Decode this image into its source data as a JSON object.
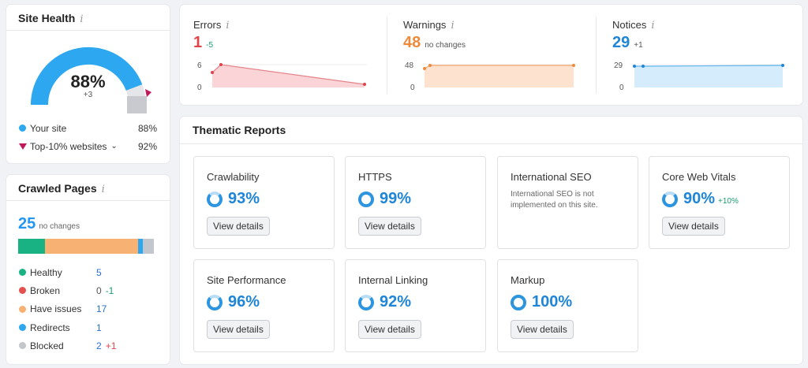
{
  "site_health": {
    "title": "Site Health",
    "info": "i",
    "value": "88%",
    "delta": "+3",
    "legend": [
      {
        "label": "Your site",
        "value": "88%",
        "color": "#2da8f0"
      },
      {
        "label": "Top-10% websites",
        "value": "92%",
        "color": "#c2185b"
      }
    ]
  },
  "crawled_pages": {
    "title": "Crawled Pages",
    "info": "i",
    "count": "25",
    "count_sub": "no changes",
    "rows": [
      {
        "label": "Healthy",
        "value": "5",
        "delta": "",
        "color": "#19b283"
      },
      {
        "label": "Broken",
        "value": "0",
        "delta": "-1",
        "color": "#e4514f"
      },
      {
        "label": "Have issues",
        "value": "17",
        "delta": "",
        "color": "#f6b173"
      },
      {
        "label": "Redirects",
        "value": "1",
        "delta": "",
        "color": "#2da8f0"
      },
      {
        "label": "Blocked",
        "value": "2",
        "delta": "+1",
        "color": "#c3c6cc"
      }
    ]
  },
  "issues": {
    "errors": {
      "title": "Errors",
      "info": "i",
      "value": "1",
      "delta": "-5",
      "color": "#e0444b",
      "ymax": "6",
      "ymin": "0"
    },
    "warnings": {
      "title": "Warnings",
      "info": "i",
      "value": "48",
      "delta": "no changes",
      "color": "#ef8a3b",
      "ymax": "48",
      "ymin": "0"
    },
    "notices": {
      "title": "Notices",
      "info": "i",
      "value": "29",
      "delta": "+1",
      "color": "#1f85d6",
      "ymax": "29",
      "ymin": "0"
    }
  },
  "thematic": {
    "title": "Thematic Reports",
    "button_label": "View details",
    "tiles": [
      {
        "title": "Crawlability",
        "value": "93%",
        "delta": "",
        "note": ""
      },
      {
        "title": "HTTPS",
        "value": "99%",
        "delta": "",
        "note": ""
      },
      {
        "title": "International SEO",
        "value": "",
        "delta": "",
        "note": "International SEO is not implemented on this site."
      },
      {
        "title": "Core Web Vitals",
        "value": "90%",
        "delta": "+10%",
        "note": ""
      },
      {
        "title": "Site Performance",
        "value": "96%",
        "delta": "",
        "note": ""
      },
      {
        "title": "Internal Linking",
        "value": "92%",
        "delta": "",
        "note": ""
      },
      {
        "title": "Markup",
        "value": "100%",
        "delta": "",
        "note": ""
      }
    ]
  }
}
